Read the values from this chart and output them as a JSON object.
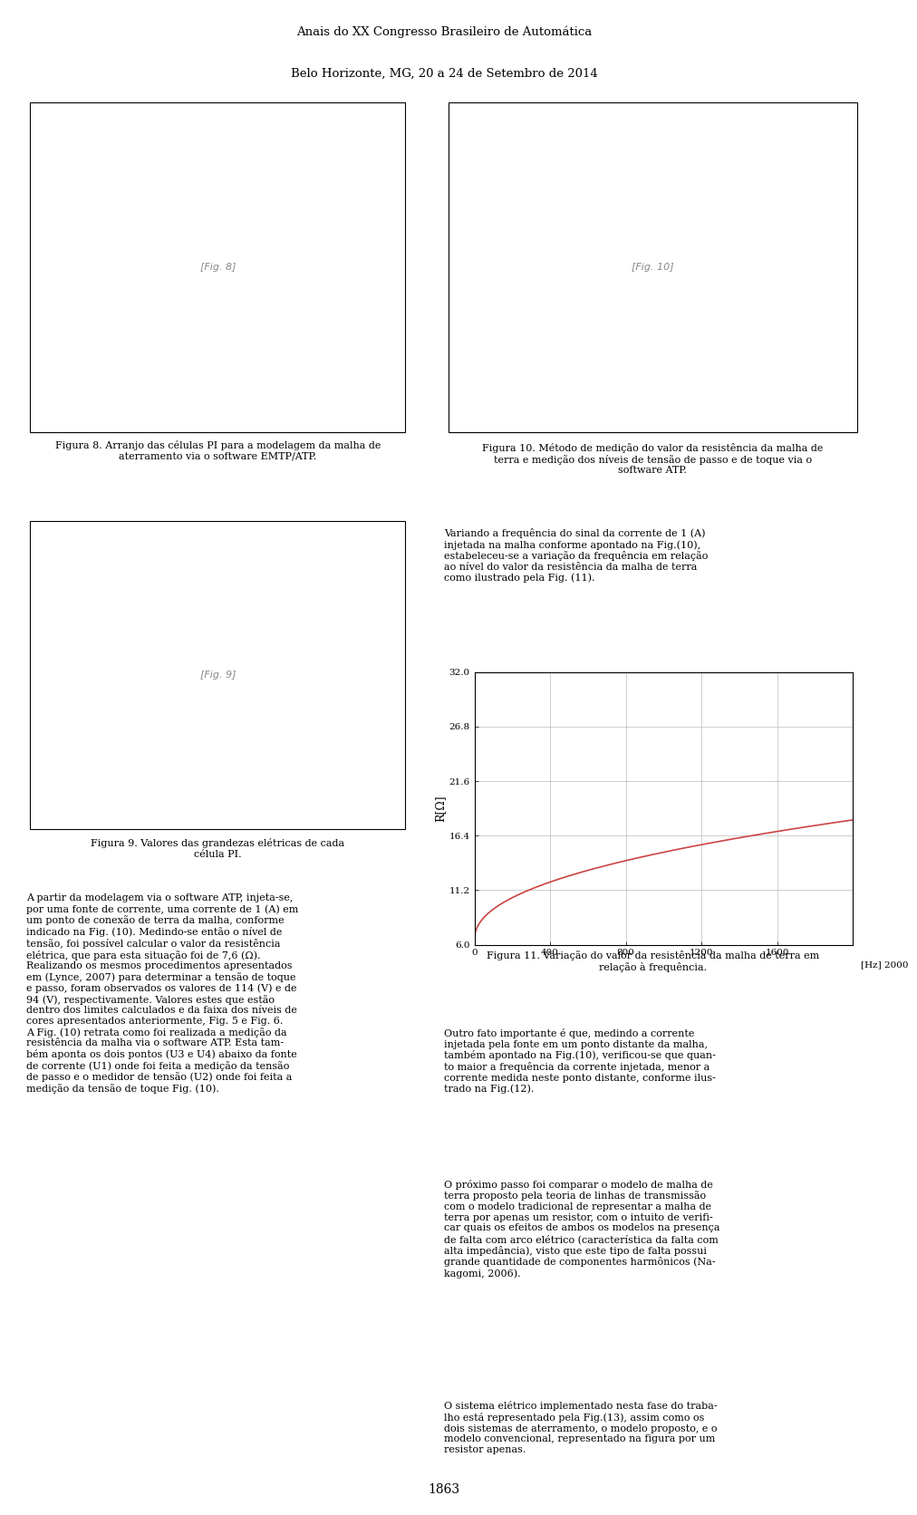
{
  "header_line1": "Anais do XX Congresso Brasileiro de Automática",
  "header_line2": "Belo Horizonte, MG, 20 a 24 de Setembro de 2014",
  "footer_page": "1863",
  "fig8_caption_l1": "Figura 8. Arranjo das células PI para a modelagem da malha de",
  "fig8_caption_l2": "aterramento via o software EMTP/ATP.",
  "fig9_caption_l1": "Figura 9. Valores das grandezas elétricas de cada",
  "fig9_caption_l2": "célula PI.",
  "fig10_caption_l1": "Figura 10. Método de medição do valor da resistência da malha de",
  "fig10_caption_l2": "terra e medição dos níveis de tensão de passo e de toque via o",
  "fig10_caption_l3": "software ATP.",
  "fig11_caption_l1": "Figura 11. Variação do valor da resistência da malha de terra em",
  "fig11_caption_l2": "relação à frequência.",
  "para1_l1": "Variando a frequência do sinal da corrente de 1 (A)",
  "para1_l2": "injetada na malha conforme apontado na Fig.(10),",
  "para1_l3": "estabeleceu-se a variação da frequência em relação",
  "para1_l4": "ao nível do valor da resistência da malha de terra",
  "para1_l5": "como ilustrado pela Fig. (11).",
  "para2_l1": "Outro fato importante é que, medindo a corrente",
  "para2_l2": "injetada pela fonte em um ponto distante da malha,",
  "para2_l3": "também apontado na Fig.(10), verificou-se que quan-",
  "para2_l4": "to maior a frequência da corrente injetada, menor a",
  "para2_l5": "corrente medida neste ponto distante, conforme ilus-",
  "para2_l6": "trado na Fig.(12).",
  "para3_l1": "O próximo passo foi comparar o modelo de malha de",
  "para3_l2": "terra proposto pela teoria de linhas de transmissão",
  "para3_l3": "com o modelo tradicional de representar a malha de",
  "para3_l4": "terra por apenas um resistor, com o intuito de verifi-",
  "para3_l5": "car quais os efeitos de ambos os modelos na presença",
  "para3_l6": "de falta com arco elétrico (característica da falta com",
  "para3_l7": "alta impedância), visto que este tipo de falta possui",
  "para3_l8": "grande quantidade de componentes harmônicos (Na-",
  "para3_l9": "kagomi, 2006).",
  "para4_l1": "O sistema elétrico implementado nesta fase do traba-",
  "para4_l2": "lho está representado pela Fig.(13), assim como os",
  "para4_l3": "dois sistemas de aterramento, o modelo proposto, e o",
  "para4_l4": "modelo convencional, representado na figura por um",
  "para4_l5": "resistor apenas.",
  "leftbody_l01": "A partir da modelagem via o software ATP, injeta-se,",
  "leftbody_l02": "por uma fonte de corrente, uma corrente de 1 (A) em",
  "leftbody_l03": "um ponto de conexão de terra da malha, conforme",
  "leftbody_l04": "indicado na Fig. (10). Medindo-se então o nível de",
  "leftbody_l05": "tensão, foi possível calcular o valor da resistência",
  "leftbody_l06": "elétrica, que para esta situação foi de 7,6 (Ω).",
  "leftbody_l07": "Realizando os mesmos procedimentos apresentados",
  "leftbody_l08": "em (Lynce, 2007) para determinar a tensão de toque",
  "leftbody_l09": "e passo, foram observados os valores de 114 (V) e de",
  "leftbody_l10": "94 (V), respectivamente. Valores estes que estão",
  "leftbody_l11": "dentro dos limites calculados e da faixa dos níveis de",
  "leftbody_l12": "cores apresentados anteriormente, Fig. 5 e Fig. 6.",
  "leftbody_l13": "A Fig. (10) retrata como foi realizada a medição da",
  "leftbody_l14": "resistência da malha via o software ATP. Esta tam-",
  "leftbody_l15": "bém aponta os dois pontos (U3 e U4) abaixo da fonte",
  "leftbody_l16": "de corrente (U1) onde foi feita a medição da tensão",
  "leftbody_l17": "de passo e o medidor de tensão (U2) onde foi feita a",
  "leftbody_l18": "medição da tensão de toque Fig. (10).",
  "graph_xlim": [
    0,
    2000
  ],
  "graph_ylim": [
    6.0,
    32.0
  ],
  "graph_yticks": [
    6.0,
    11.2,
    16.4,
    21.6,
    26.8,
    32.0
  ],
  "graph_xticks": [
    0,
    400,
    800,
    1200,
    1600
  ],
  "graph_ylabel": "R[Ω]",
  "graph_hz_label": "[Hz] 2000",
  "graph_line_color": "#cc4444",
  "graph_bg": "#ffffff",
  "graph_grid_color": "#bbbbbb"
}
